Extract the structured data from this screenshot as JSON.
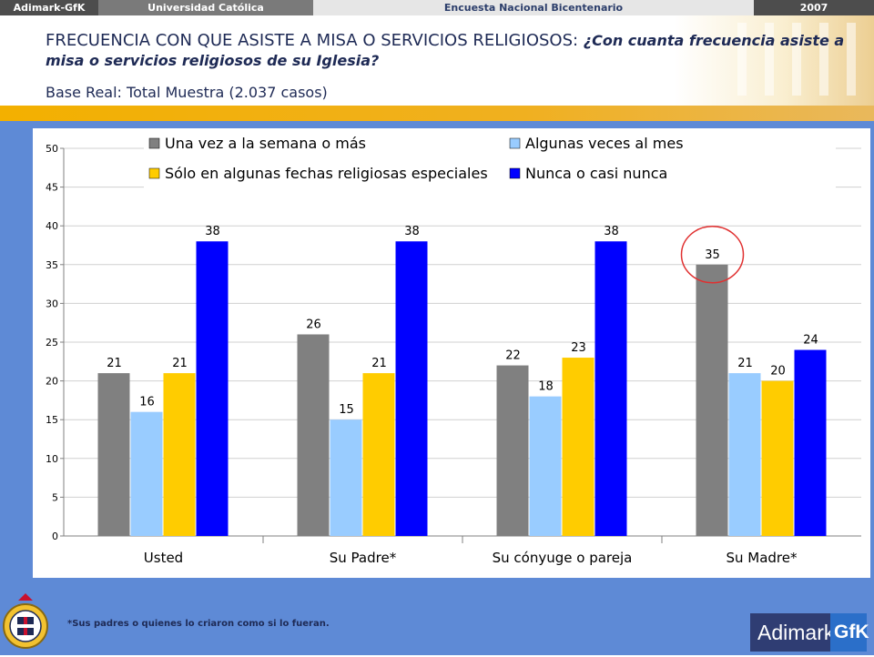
{
  "topbar": {
    "brand": "Adimark-GfK",
    "university": "Universidad Católica",
    "survey": "Encuesta Nacional Bicentenario",
    "year": "2007"
  },
  "header": {
    "title_main": "FRECUENCIA CON QUE ASISTE A MISA O SERVICIOS RELIGIOSOS: ",
    "title_question": "¿Con cuanta frecuencia asiste a misa o servicios religiosos de su Iglesia?",
    "base": "Base Real: Total Muestra (2.037 casos)"
  },
  "footnote": "*Sus padres o quienes lo criaron como si lo fueran.",
  "logo": {
    "left": "Adimark",
    "right": "GfK"
  },
  "chart_data": {
    "type": "bar",
    "categories": [
      "Usted",
      "Su Padre*",
      "Su cónyuge o pareja",
      "Su Madre*"
    ],
    "series": [
      {
        "name": "Una vez a la semana o más",
        "color": "#808080",
        "values": [
          21,
          26,
          22,
          35
        ]
      },
      {
        "name": "Algunas veces al mes",
        "color": "#99ccff",
        "values": [
          16,
          15,
          18,
          21
        ]
      },
      {
        "name": "Sólo en algunas fechas religiosas especiales",
        "color": "#ffcc00",
        "values": [
          21,
          21,
          23,
          20
        ]
      },
      {
        "name": "Nunca o casi nunca",
        "color": "#0000ff",
        "values": [
          38,
          38,
          38,
          24
        ]
      }
    ],
    "ylim": [
      0,
      50
    ],
    "yticks": [
      "0",
      "5",
      "10",
      "15",
      "20",
      "25",
      "30",
      "35",
      "40",
      "45",
      "50"
    ],
    "grid": true,
    "legend": "top",
    "highlight": "Su Madre* — Una vez a la semana o más (35)"
  }
}
